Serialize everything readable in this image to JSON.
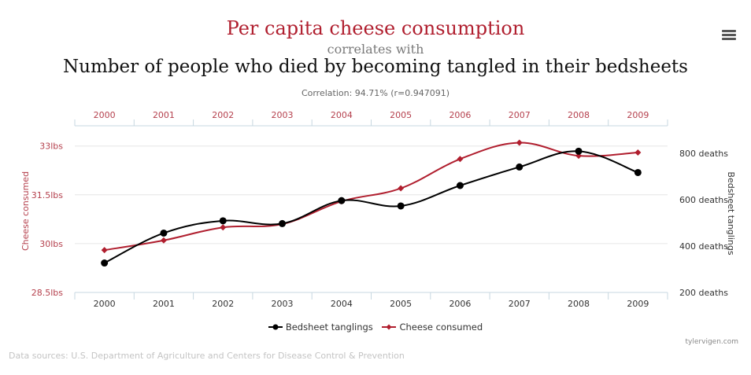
{
  "header": {
    "title_primary": "Per capita cheese consumption",
    "title_connector": "correlates with",
    "title_secondary": "Number of people who died by becoming tangled in their bedsheets",
    "correlation": "Correlation: 94.71% (r=0.947091)"
  },
  "icons": {
    "menu": "hamburger-menu-icon"
  },
  "colors": {
    "cheese": "#b01e2e",
    "bedsheet": "#000000",
    "axis_left_text": "#b5404d",
    "grid": "#e6e6e6"
  },
  "chart_data": {
    "type": "line",
    "x": [
      "2000",
      "2001",
      "2002",
      "2003",
      "2004",
      "2005",
      "2006",
      "2007",
      "2008",
      "2009"
    ],
    "series": [
      {
        "name": "Bedsheet tanglings",
        "axis": "right",
        "values": [
          327,
          456,
          509,
          497,
          596,
          573,
          661,
          741,
          809,
          717
        ]
      },
      {
        "name": "Cheese consumed",
        "axis": "left",
        "values": [
          29.8,
          30.1,
          30.5,
          30.6,
          31.3,
          31.7,
          32.6,
          33.1,
          32.7,
          32.8
        ]
      }
    ],
    "left_axis": {
      "label": "Cheese consumed",
      "ticks": [
        "28.5lbs",
        "30lbs",
        "31.5lbs",
        "33lbs"
      ],
      "ylim": [
        28.5,
        33.5
      ]
    },
    "right_axis": {
      "label": "Bedsheet tanglings",
      "ticks": [
        "200 deaths",
        "400 deaths",
        "600 deaths",
        "800 deaths"
      ],
      "ylim": [
        200,
        800
      ]
    },
    "grid": true,
    "legend_placement": "bottom-center"
  },
  "footer": {
    "credit": "tylervigen.com",
    "sources": "Data sources: U.S. Department of Agriculture and Centers for Disease Control & Prevention"
  }
}
